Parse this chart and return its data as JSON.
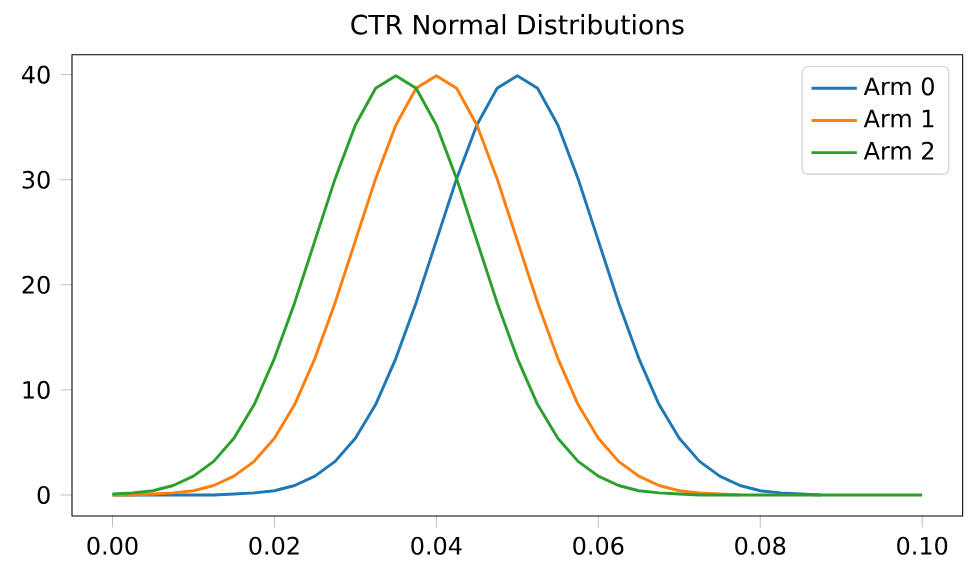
{
  "chart_data": {
    "type": "line",
    "title": "CTR Normal Distributions",
    "x": [
      0,
      0.0025,
      0.005,
      0.0075,
      0.01,
      0.0125,
      0.015,
      0.0175,
      0.02,
      0.0225,
      0.025,
      0.0275,
      0.03,
      0.0325,
      0.035,
      0.0375,
      0.04,
      0.0425,
      0.045,
      0.0475,
      0.05,
      0.0525,
      0.055,
      0.0575,
      0.06,
      0.0625,
      0.065,
      0.0675,
      0.07,
      0.0725,
      0.075,
      0.0775,
      0.08,
      0.0825,
      0.085,
      0.0875,
      0.09,
      0.0925,
      0.095,
      0.0975,
      0.1
    ],
    "series": [
      {
        "name": "Arm 0",
        "color": "#1f77b4",
        "values": [
          0.0,
          0.0,
          0.0,
          0.0,
          0.0,
          0.0,
          0.1,
          0.2,
          0.4,
          0.9,
          1.8,
          3.2,
          5.4,
          8.6,
          13.0,
          18.3,
          24.2,
          30.1,
          35.2,
          38.7,
          39.9,
          38.7,
          35.2,
          30.1,
          24.2,
          18.3,
          13.0,
          8.6,
          5.4,
          3.2,
          1.8,
          0.9,
          0.4,
          0.2,
          0.1,
          0.0,
          null,
          null,
          null,
          null,
          null
        ]
      },
      {
        "name": "Arm 1",
        "color": "#ff7f0e",
        "values": [
          0.0,
          0.0,
          0.1,
          0.2,
          0.4,
          0.9,
          1.8,
          3.2,
          5.4,
          8.6,
          13.0,
          18.3,
          24.2,
          30.1,
          35.2,
          38.7,
          39.9,
          38.7,
          35.2,
          30.1,
          24.2,
          18.3,
          13.0,
          8.6,
          5.4,
          3.2,
          1.8,
          0.9,
          0.4,
          0.2,
          0.1,
          0.0,
          null,
          null,
          null,
          null,
          null,
          null,
          null,
          null,
          null
        ]
      },
      {
        "name": "Arm 2",
        "color": "#2ca02c",
        "values": [
          0.1,
          0.2,
          0.4,
          0.9,
          1.8,
          3.2,
          5.4,
          8.6,
          13.0,
          18.3,
          24.2,
          30.1,
          35.2,
          38.7,
          39.9,
          38.7,
          35.2,
          30.1,
          24.2,
          18.3,
          13.0,
          8.6,
          5.4,
          3.2,
          1.8,
          0.9,
          0.4,
          0.2,
          0.1,
          0.0,
          0.0,
          0.0,
          0.0,
          0.0,
          0.0,
          0.0,
          0.0,
          0.0,
          0.0,
          0.0,
          0.0
        ]
      }
    ],
    "xlim": [
      -0.005,
      0.105
    ],
    "ylim": [
      -2,
      41.9
    ],
    "xticks": [
      {
        "value": 0,
        "label": "0.00"
      },
      {
        "value": 0.02,
        "label": "0.02"
      },
      {
        "value": 0.04,
        "label": "0.04"
      },
      {
        "value": 0.06,
        "label": "0.06"
      },
      {
        "value": 0.08,
        "label": "0.08"
      },
      {
        "value": 0.1,
        "label": "0.10"
      }
    ],
    "yticks": [
      0,
      10,
      20,
      30,
      40
    ],
    "legend": "top right",
    "grid": false,
    "marker": "none",
    "line_style": "solid"
  }
}
